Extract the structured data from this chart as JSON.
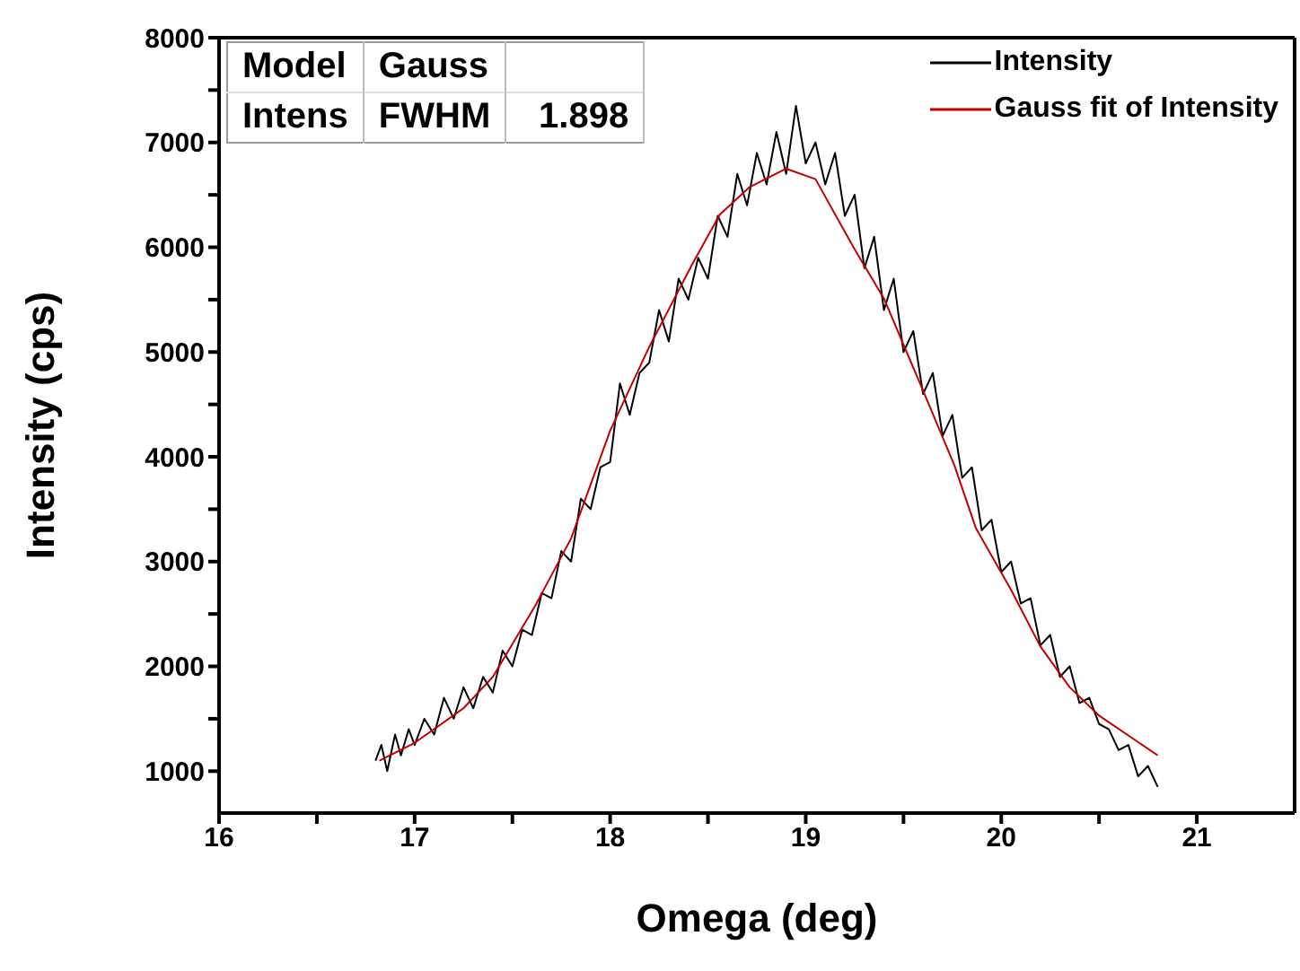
{
  "chart_data": {
    "type": "line",
    "xlabel": "Omega (deg)",
    "ylabel": "Intensity (cps)",
    "xlim": [
      16,
      21.5
    ],
    "xticks": [
      16,
      {
        "value": 16.5,
        "label": null
      },
      17,
      {
        "value": 17.5,
        "label": null
      },
      18,
      {
        "value": 18.5,
        "label": null
      },
      19,
      {
        "value": 19.5,
        "label": null
      },
      20,
      {
        "value": 20.5,
        "label": null
      },
      21
    ],
    "ylim": [
      600,
      8000
    ],
    "yticks": [
      1000,
      {
        "value": 1500,
        "label": null
      },
      2000,
      {
        "value": 2500,
        "label": null
      },
      3000,
      {
        "value": 3500,
        "label": null
      },
      4000,
      {
        "value": 4500,
        "label": null
      },
      5000,
      {
        "value": 5500,
        "label": null
      },
      6000,
      {
        "value": 6500,
        "label": null
      },
      7000,
      {
        "value": 7500,
        "label": null
      },
      8000
    ],
    "legend": "top right",
    "marker": "none",
    "line_style": "solid",
    "annotations": [
      "Model",
      "Gauss",
      "Intens",
      "FWHM",
      "1.898"
    ],
    "series": [
      {
        "name": "Intensity",
        "color": "#000000",
        "x": [
          16.8,
          16.83,
          16.86,
          16.9,
          16.93,
          16.97,
          17.0,
          17.05,
          17.1,
          17.15,
          17.2,
          17.25,
          17.3,
          17.35,
          17.4,
          17.45,
          17.5,
          17.55,
          17.6,
          17.65,
          17.7,
          17.75,
          17.8,
          17.85,
          17.9,
          17.95,
          18.0,
          18.05,
          18.1,
          18.15,
          18.2,
          18.25,
          18.3,
          18.35,
          18.4,
          18.45,
          18.5,
          18.55,
          18.6,
          18.65,
          18.7,
          18.75,
          18.8,
          18.85,
          18.9,
          18.95,
          19.0,
          19.05,
          19.1,
          19.15,
          19.2,
          19.25,
          19.3,
          19.35,
          19.4,
          19.45,
          19.5,
          19.55,
          19.6,
          19.65,
          19.7,
          19.75,
          19.8,
          19.85,
          19.9,
          19.95,
          20.0,
          20.05,
          20.1,
          20.15,
          20.2,
          20.25,
          20.3,
          20.35,
          20.4,
          20.45,
          20.5,
          20.55,
          20.6,
          20.65,
          20.7,
          20.75,
          20.8
        ],
        "values": [
          1100,
          1250,
          1000,
          1350,
          1150,
          1400,
          1250,
          1500,
          1350,
          1700,
          1500,
          1800,
          1600,
          1900,
          1750,
          2150,
          2000,
          2350,
          2300,
          2700,
          2650,
          3100,
          3000,
          3600,
          3500,
          3900,
          3950,
          4700,
          4400,
          4800,
          4900,
          5400,
          5100,
          5700,
          5500,
          5900,
          5700,
          6300,
          6100,
          6700,
          6400,
          6900,
          6600,
          7100,
          6700,
          7350,
          6800,
          7000,
          6600,
          6900,
          6300,
          6500,
          5800,
          6100,
          5400,
          5700,
          5000,
          5200,
          4600,
          4800,
          4200,
          4400,
          3800,
          3900,
          3300,
          3400,
          2900,
          3000,
          2600,
          2650,
          2200,
          2300,
          1900,
          2000,
          1650,
          1700,
          1450,
          1400,
          1200,
          1250,
          950,
          1050,
          850
        ]
      },
      {
        "name": "Gauss fit of Intensity",
        "color": "#c00000",
        "x": [
          16.82,
          17.0,
          17.25,
          17.4,
          17.62,
          17.8,
          18.0,
          18.2,
          18.42,
          18.56,
          18.71,
          18.9,
          19.05,
          19.25,
          19.4,
          19.58,
          19.76,
          19.87,
          20.05,
          20.2,
          20.35,
          20.5,
          20.8
        ],
        "values": [
          1100,
          1270,
          1600,
          1900,
          2590,
          3220,
          4250,
          5050,
          5840,
          6310,
          6570,
          6750,
          6650,
          5980,
          5510,
          4720,
          3920,
          3320,
          2730,
          2190,
          1800,
          1530,
          1150
        ]
      }
    ]
  }
}
